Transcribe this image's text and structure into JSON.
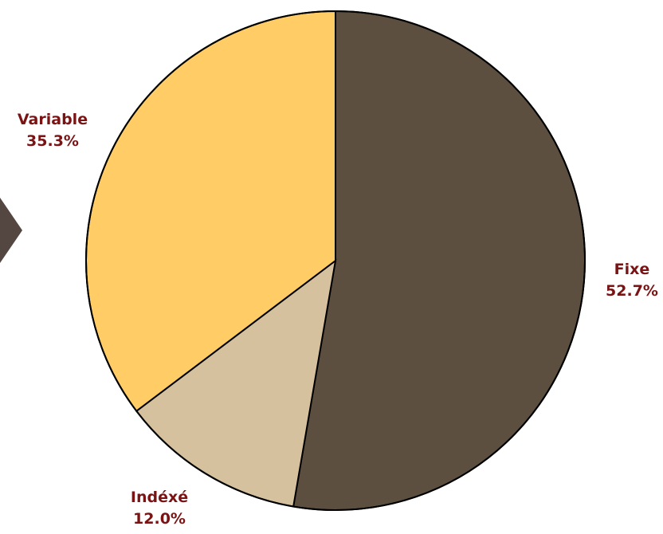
{
  "chart_data": {
    "type": "pie",
    "title": "",
    "slices": [
      {
        "label": "Fixe",
        "value": 52.7,
        "value_label": "52.7%",
        "color": "#5c4f3f"
      },
      {
        "label": "Indéxé",
        "value": 12.0,
        "value_label": "12.0%",
        "color": "#d6c19e"
      },
      {
        "label": "Variable",
        "value": 35.3,
        "value_label": "35.3%",
        "color": "#ffcc66"
      }
    ],
    "start": "12 o'clock",
    "direction": "clockwise",
    "legend": "none"
  },
  "colors": {
    "label_text": "#7a1414",
    "slice_border": "#000000",
    "decor_arrow": "#544640"
  },
  "decor": {
    "left_arrow_icon": "triangle-right-icon"
  }
}
